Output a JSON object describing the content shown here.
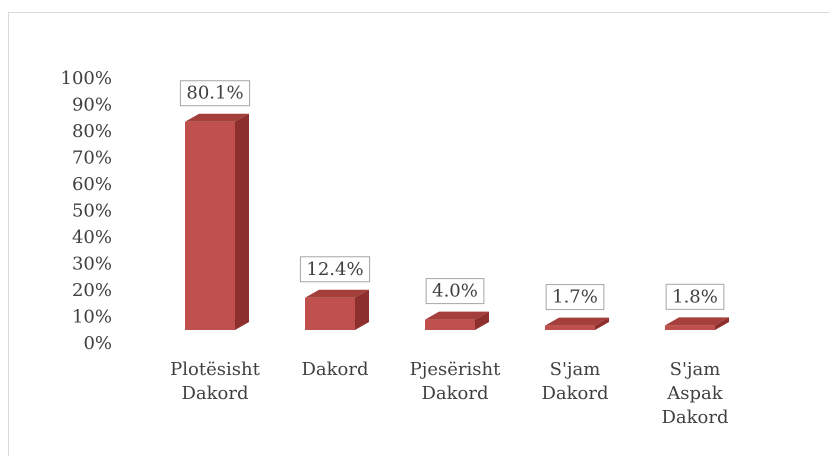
{
  "chart_data": {
    "type": "bar3d",
    "categories": [
      "Plotësisht Dakord",
      "Dakord",
      "Pjesërisht Dakord",
      "S'jam Dakord",
      "S'jam Aspak Dakord"
    ],
    "values": [
      80.1,
      12.4,
      4.0,
      1.7,
      1.8
    ],
    "value_labels": [
      "80.1%",
      "12.4%",
      "4.0%",
      "1.7%",
      "1.8%"
    ],
    "color": "#c0504d",
    "ylim": [
      0,
      100
    ],
    "yticks": [
      {
        "value": 0,
        "label": "0%"
      },
      {
        "value": 10,
        "label": "10%"
      },
      {
        "value": 20,
        "label": "20%"
      },
      {
        "value": 30,
        "label": "30%"
      },
      {
        "value": 40,
        "label": "40%"
      },
      {
        "value": 50,
        "label": "50%"
      },
      {
        "value": 60,
        "label": "60%"
      },
      {
        "value": 70,
        "label": "70%"
      },
      {
        "value": 80,
        "label": "80%"
      },
      {
        "value": 90,
        "label": "90%"
      },
      {
        "value": 100,
        "label": "100%"
      }
    ],
    "grid": false
  }
}
